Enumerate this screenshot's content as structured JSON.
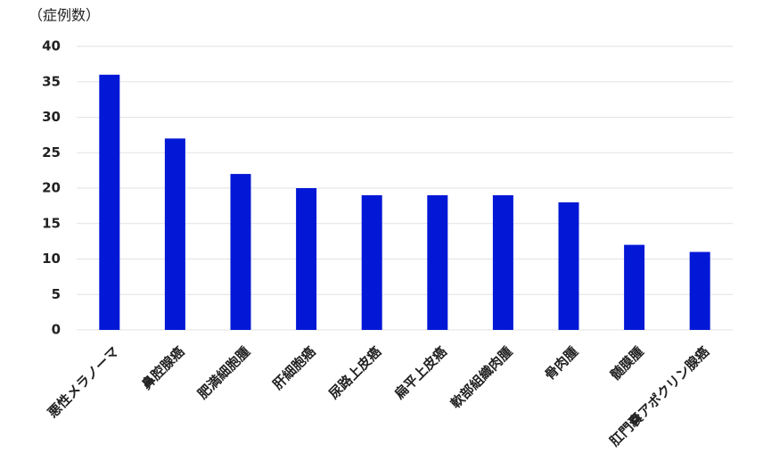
{
  "chart_data": {
    "type": "bar",
    "y_label": "（症例数）",
    "categories": [
      "悪性メラノーマ",
      "鼻腔腺癌",
      "肥満細胞腫",
      "肝細胞癌",
      "尿路上皮癌",
      "扁平上皮癌",
      "軟部組織肉腫",
      "骨肉腫",
      "髄膜腫",
      "肛門嚢アポクリン腺癌"
    ],
    "values": [
      36,
      27,
      22,
      20,
      19,
      19,
      19,
      18,
      12,
      11
    ],
    "color": "#0318d6",
    "ylim": [
      0,
      40
    ],
    "yticks": [
      0,
      5,
      10,
      15,
      20,
      25,
      30,
      35,
      40
    ],
    "grid": true
  }
}
